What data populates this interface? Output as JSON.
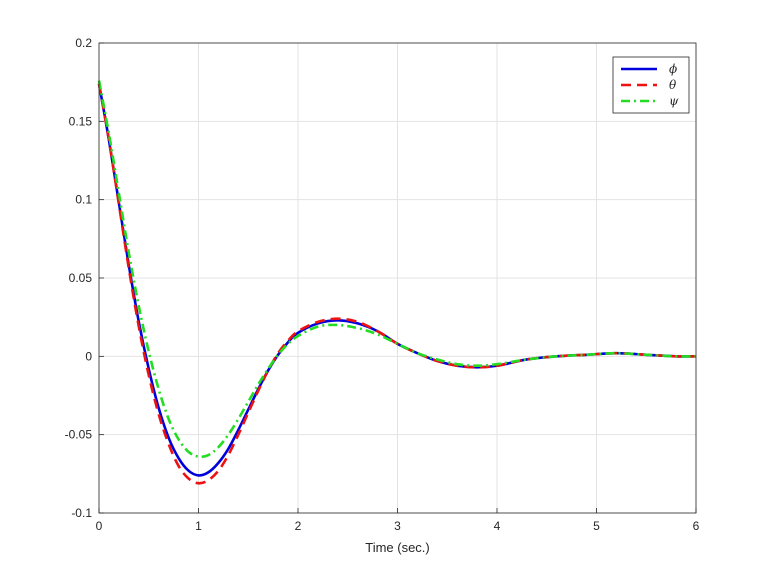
{
  "chart_data": {
    "type": "line",
    "title": "",
    "xlabel": "Time (sec.)",
    "ylabel": "",
    "xlim": [
      0,
      6
    ],
    "ylim": [
      -0.1,
      0.2
    ],
    "xticks": [
      "0",
      "1",
      "2",
      "3",
      "4",
      "5",
      "6"
    ],
    "yticks": [
      "-0.1",
      "-0.05",
      "0",
      "0.05",
      "0.1",
      "0.15",
      "0.2"
    ],
    "grid": true,
    "legend_position": "top-right",
    "x": [
      0,
      0.1,
      0.2,
      0.3,
      0.4,
      0.5,
      0.6,
      0.7,
      0.8,
      0.9,
      1.0,
      1.1,
      1.2,
      1.3,
      1.4,
      1.5,
      1.6,
      1.7,
      1.8,
      1.9,
      2.0,
      2.2,
      2.4,
      2.6,
      2.8,
      3.0,
      3.2,
      3.4,
      3.6,
      3.8,
      4.0,
      4.3,
      4.6,
      4.9,
      5.2,
      5.5,
      5.8,
      6.0
    ],
    "series": [
      {
        "name": "ϕ",
        "color": "#0000dd",
        "style": "solid",
        "values": [
          0.174,
          0.138,
          0.098,
          0.058,
          0.022,
          -0.008,
          -0.033,
          -0.052,
          -0.065,
          -0.073,
          -0.076,
          -0.074,
          -0.068,
          -0.059,
          -0.047,
          -0.034,
          -0.021,
          -0.009,
          0.001,
          0.009,
          0.015,
          0.021,
          0.023,
          0.021,
          0.016,
          0.008,
          0.002,
          -0.003,
          -0.006,
          -0.007,
          -0.006,
          -0.002,
          0.0,
          0.001,
          0.002,
          0.001,
          0.0,
          0.0
        ]
      },
      {
        "name": "θ",
        "color": "#ee1111",
        "style": "dashed",
        "values": [
          0.174,
          0.138,
          0.097,
          0.056,
          0.019,
          -0.012,
          -0.037,
          -0.056,
          -0.07,
          -0.078,
          -0.081,
          -0.079,
          -0.073,
          -0.063,
          -0.05,
          -0.036,
          -0.022,
          -0.009,
          0.002,
          0.01,
          0.016,
          0.022,
          0.024,
          0.022,
          0.016,
          0.008,
          0.002,
          -0.003,
          -0.006,
          -0.007,
          -0.006,
          -0.002,
          0.0,
          0.001,
          0.002,
          0.001,
          0.0,
          0.0
        ]
      },
      {
        "name": "ψ",
        "color": "#22dd22",
        "style": "dashdot",
        "values": [
          0.176,
          0.142,
          0.104,
          0.066,
          0.032,
          0.003,
          -0.021,
          -0.04,
          -0.053,
          -0.061,
          -0.064,
          -0.063,
          -0.058,
          -0.05,
          -0.04,
          -0.029,
          -0.018,
          -0.008,
          0.001,
          0.008,
          0.013,
          0.019,
          0.02,
          0.018,
          0.014,
          0.008,
          0.002,
          -0.002,
          -0.005,
          -0.006,
          -0.005,
          -0.002,
          0.0,
          0.001,
          0.002,
          0.001,
          0.0,
          0.0
        ]
      }
    ]
  }
}
